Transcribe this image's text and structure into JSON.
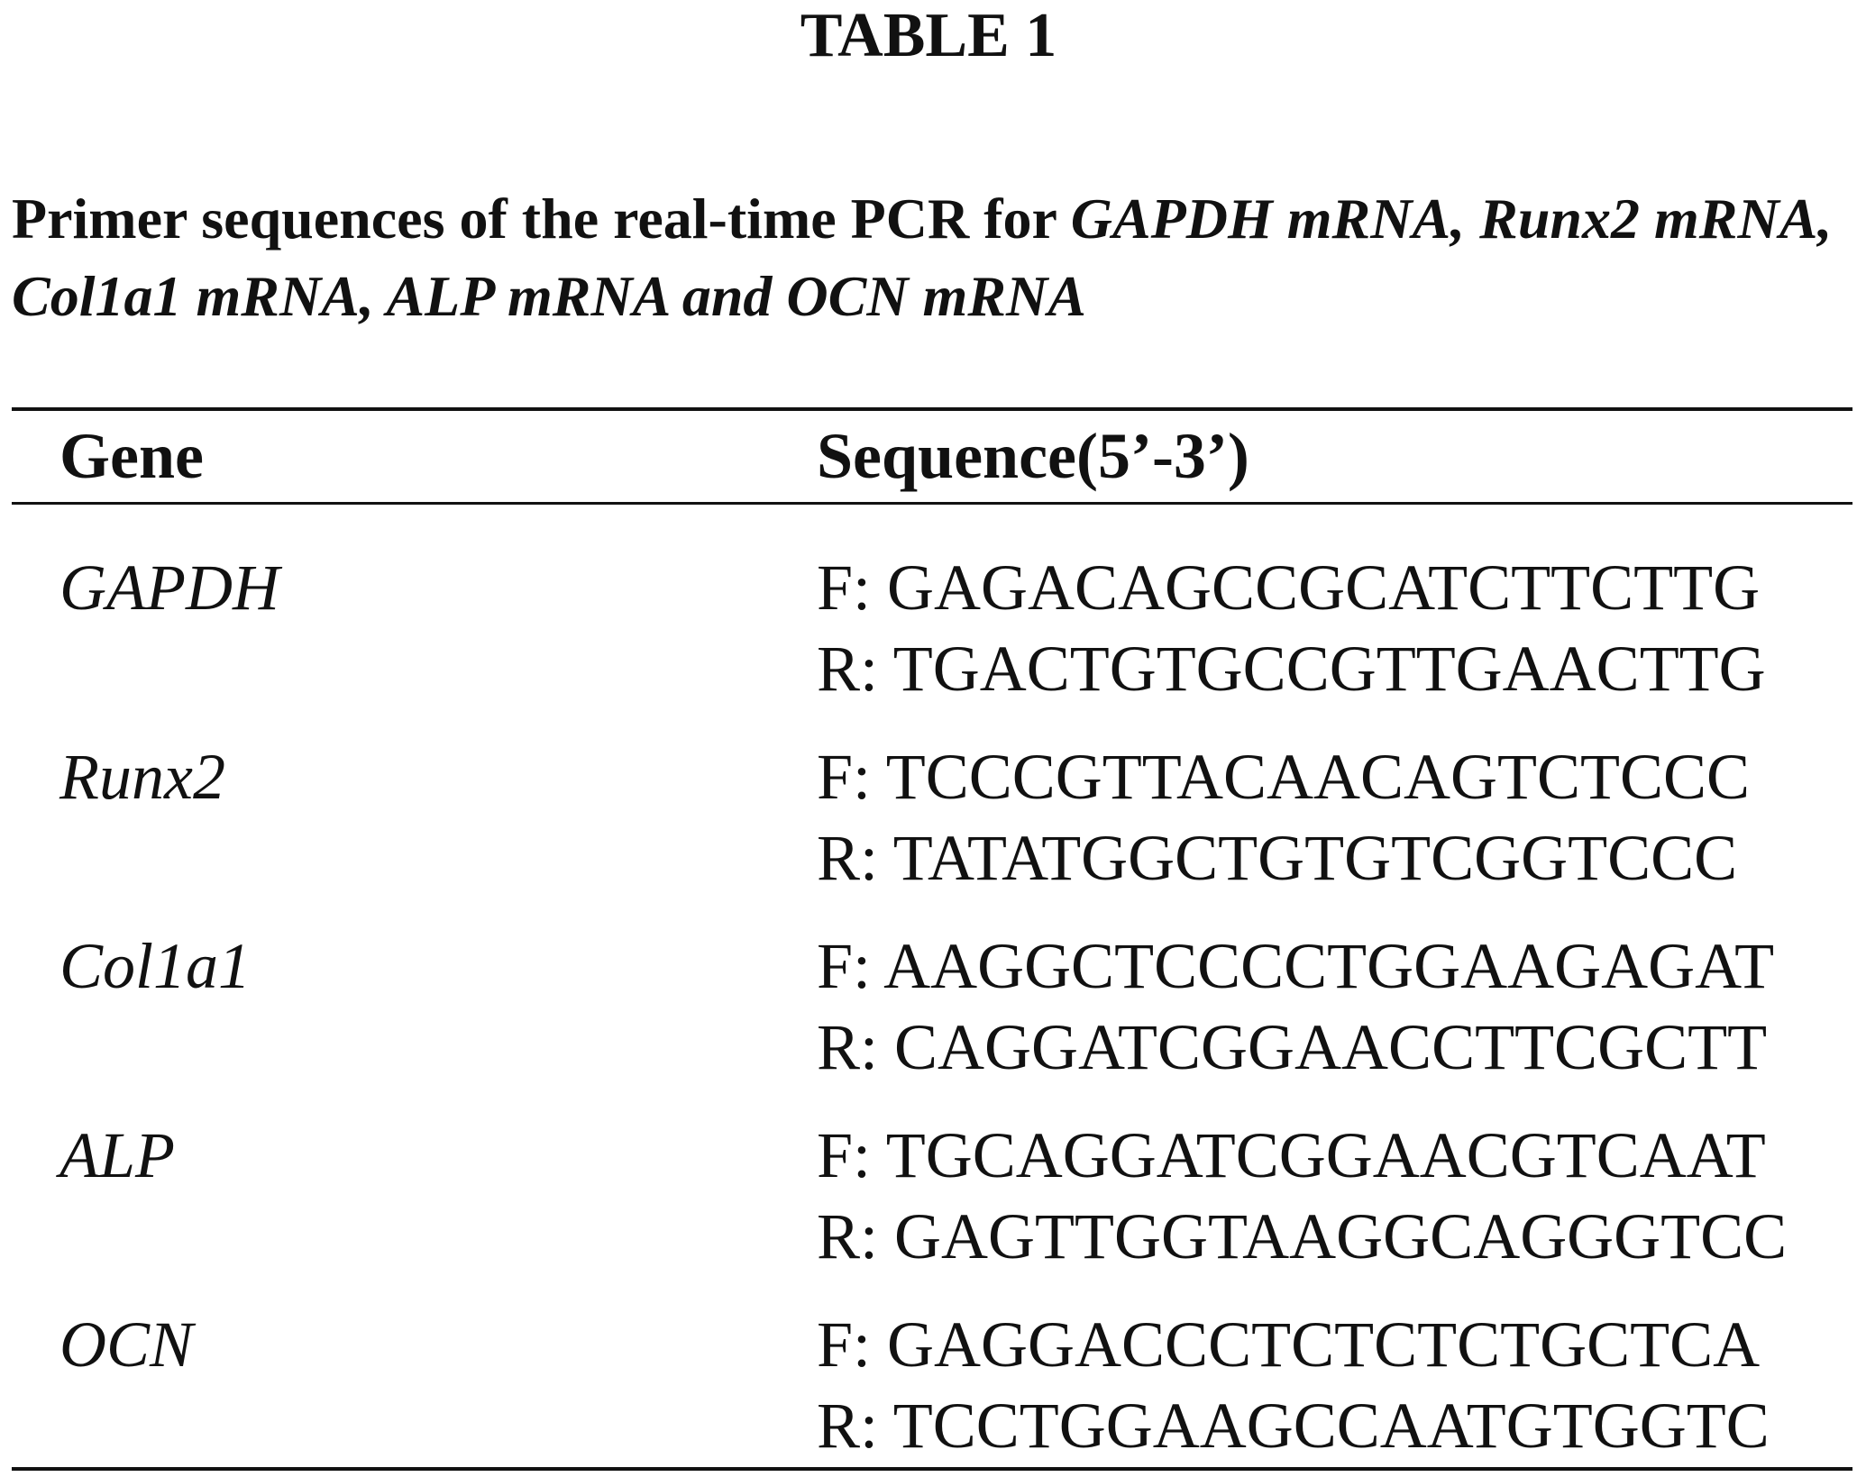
{
  "title": "TABLE 1",
  "caption": {
    "text": "Primer sequences of the real-time PCR for ",
    "italic": "GAPDH mRNA, Runx2 mRNA, Col1a1 mRNA, ALP mRNA and OCN mRNA"
  },
  "table": {
    "header": [
      "Gene",
      "Sequence(5’-3’)"
    ],
    "rows": [
      {
        "gene": "GAPDH",
        "forward": "F: GAGACAGCCGCATCTTCTTG",
        "reverse": "R: TGACTGTGCCGTTGAACTTG"
      },
      {
        "gene": "Runx2",
        "forward": "F: TCCCGTTACAACAGTCTCCC",
        "reverse": "R: TATATGGCTGTGTCGGTCCC"
      },
      {
        "gene": "Col1a1",
        "forward": "F: AAGGCTCCCCTGGAAGAGAT",
        "reverse": "R: CAGGATCGGAACCTTCGCTT"
      },
      {
        "gene": "ALP",
        "forward": "F: TGCAGGATCGGAACGTCAAT",
        "reverse": "R: GAGTTGGTAAGGCAGGGTCC"
      },
      {
        "gene": "OCN",
        "forward": "F: GAGGACCCTCTCTCTGCTCA",
        "reverse": "R: TCCTGGAAGCCAATGTGGTC"
      }
    ]
  }
}
